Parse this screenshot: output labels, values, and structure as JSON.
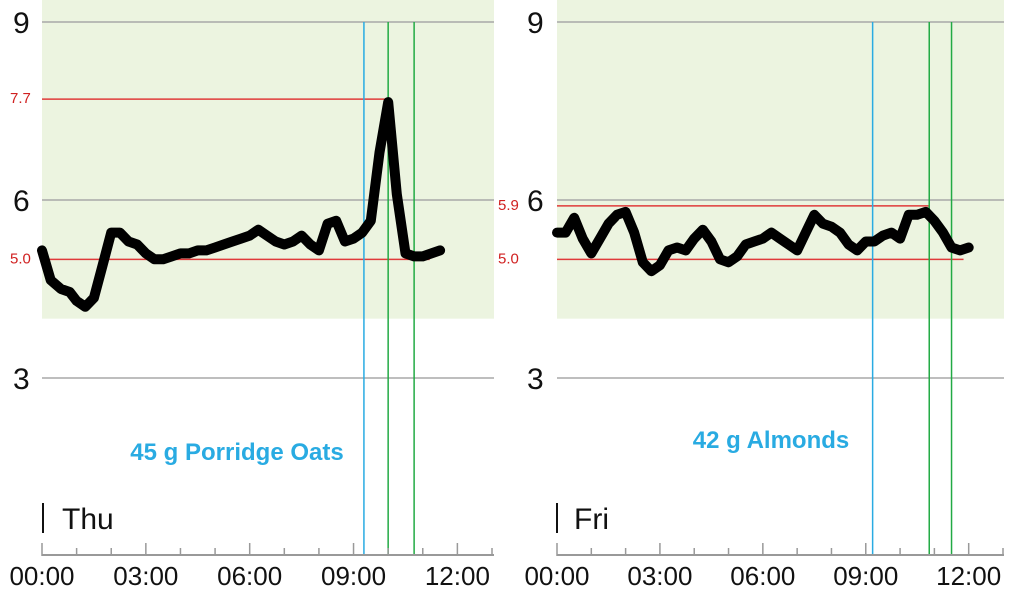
{
  "chart_data": [
    {
      "type": "line",
      "day_label": "Thu",
      "annotation": "45 g Porridge Oats",
      "x_ticks": [
        "00:00",
        "03:00",
        "06:00",
        "09:00",
        "12:00"
      ],
      "y_ticks": [
        "3",
        "6",
        "9"
      ],
      "xlim": [
        0,
        13
      ],
      "ylim": [
        0,
        9
      ],
      "target_band": [
        4,
        9
      ],
      "ref_lines": [
        {
          "value": 7.7,
          "label": "7.7"
        },
        {
          "value": 5.0,
          "label": "5.0"
        }
      ],
      "markers": [
        {
          "x": 9.3,
          "color": "#29abe2"
        },
        {
          "x": 10.0,
          "color": "#22aa44"
        },
        {
          "x": 10.75,
          "color": "#22aa44"
        }
      ],
      "series": [
        {
          "x": [
            0.0,
            0.25,
            0.55,
            0.8,
            1.0,
            1.25,
            1.5,
            1.75,
            2.0,
            2.25,
            2.5,
            2.75,
            3.0,
            3.25,
            3.5,
            3.75,
            4.0,
            4.25,
            4.5,
            4.75,
            5.0,
            5.25,
            5.5,
            5.75,
            6.0,
            6.25,
            6.5,
            6.75,
            7.0,
            7.25,
            7.5,
            7.75,
            8.0,
            8.25,
            8.5,
            8.75,
            9.0,
            9.25,
            9.5,
            9.75,
            10.0,
            10.25,
            10.5,
            10.75,
            11.0,
            11.25,
            11.5
          ],
          "y": [
            5.15,
            4.65,
            4.5,
            4.45,
            4.3,
            4.2,
            4.35,
            4.9,
            5.45,
            5.45,
            5.3,
            5.25,
            5.1,
            5.0,
            5.0,
            5.05,
            5.1,
            5.1,
            5.15,
            5.15,
            5.2,
            5.25,
            5.3,
            5.35,
            5.4,
            5.5,
            5.4,
            5.3,
            5.25,
            5.3,
            5.4,
            5.25,
            5.15,
            5.6,
            5.65,
            5.3,
            5.35,
            5.45,
            5.65,
            6.8,
            7.65,
            6.1,
            5.1,
            5.05,
            5.05,
            5.1,
            5.15
          ]
        }
      ]
    },
    {
      "type": "line",
      "day_label": "Fri",
      "annotation": "42 g Almonds",
      "x_ticks": [
        "00:00",
        "03:00",
        "06:00",
        "09:00",
        "12:00"
      ],
      "y_ticks": [
        "3",
        "6",
        "9"
      ],
      "xlim": [
        0,
        13
      ],
      "ylim": [
        0,
        9
      ],
      "target_band": [
        4,
        9
      ],
      "ref_lines": [
        {
          "value": 5.9,
          "label": "5.9"
        },
        {
          "value": 5.0,
          "label": "5.0"
        }
      ],
      "markers": [
        {
          "x": 9.2,
          "color": "#29abe2"
        },
        {
          "x": 10.85,
          "color": "#22aa44"
        },
        {
          "x": 11.5,
          "color": "#22aa44"
        }
      ],
      "series": [
        {
          "x": [
            0.0,
            0.25,
            0.5,
            0.75,
            1.0,
            1.25,
            1.5,
            1.75,
            2.0,
            2.25,
            2.5,
            2.75,
            3.0,
            3.25,
            3.5,
            3.75,
            4.0,
            4.25,
            4.5,
            4.75,
            5.0,
            5.25,
            5.5,
            5.75,
            6.0,
            6.25,
            6.5,
            6.75,
            7.0,
            7.25,
            7.5,
            7.75,
            8.0,
            8.25,
            8.5,
            8.75,
            9.0,
            9.25,
            9.5,
            9.75,
            10.0,
            10.25,
            10.5,
            10.75,
            11.0,
            11.25,
            11.5,
            11.75,
            12.0
          ],
          "y": [
            5.45,
            5.45,
            5.7,
            5.35,
            5.1,
            5.35,
            5.6,
            5.75,
            5.8,
            5.45,
            4.95,
            4.8,
            4.9,
            5.15,
            5.2,
            5.15,
            5.35,
            5.5,
            5.3,
            5.0,
            4.95,
            5.05,
            5.25,
            5.3,
            5.35,
            5.45,
            5.35,
            5.25,
            5.15,
            5.45,
            5.75,
            5.6,
            5.55,
            5.45,
            5.25,
            5.15,
            5.3,
            5.3,
            5.4,
            5.45,
            5.35,
            5.75,
            5.75,
            5.8,
            5.65,
            5.45,
            5.2,
            5.15,
            5.2
          ]
        }
      ]
    }
  ]
}
